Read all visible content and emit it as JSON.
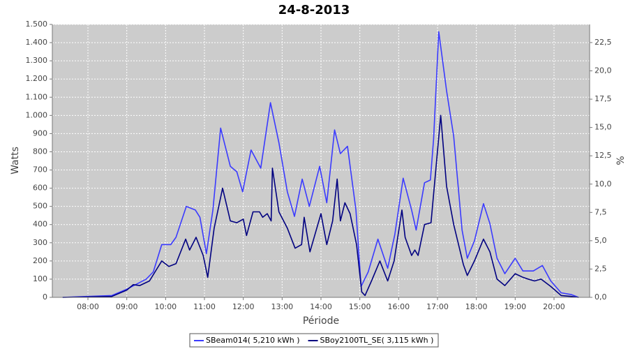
{
  "chart_data": {
    "type": "line",
    "title": "24-8-2013",
    "x_label": "Période",
    "y_label": "Watts",
    "y2_label": "%",
    "xlim": [
      "07:05",
      "20:55"
    ],
    "xticks": [
      "08:00",
      "09:00",
      "10:00",
      "11:00",
      "12:00",
      "13:00",
      "14:00",
      "15:00",
      "16:00",
      "17:00",
      "18:00",
      "19:00",
      "20:00"
    ],
    "ylim": [
      0,
      1500
    ],
    "yticks": [
      0,
      100,
      200,
      300,
      400,
      500,
      600,
      700,
      800,
      900,
      {
        "value": 1000,
        "label": "1.000"
      },
      {
        "value": 1100,
        "label": "1.100"
      },
      {
        "value": 1200,
        "label": "1.200"
      },
      {
        "value": 1300,
        "label": "1.300"
      },
      {
        "value": 1400,
        "label": "1.400"
      },
      {
        "value": 1500,
        "label": "1.500"
      }
    ],
    "y2lim": [
      0,
      24.1
    ],
    "y2ticks": [
      {
        "value": 0,
        "label": "0,0"
      },
      {
        "value": 2.5,
        "label": "2,5"
      },
      {
        "value": 5,
        "label": "5,0"
      },
      {
        "value": 7.5,
        "label": "7,5"
      },
      {
        "value": 10,
        "label": "10,0"
      },
      {
        "value": 12.5,
        "label": "12,5"
      },
      {
        "value": 15,
        "label": "15,0"
      },
      {
        "value": 17.5,
        "label": "17,5"
      },
      {
        "value": 20,
        "label": "20,0"
      },
      {
        "value": 22.5,
        "label": "22,5"
      }
    ],
    "grid": true,
    "legend": "bottom",
    "series": [
      {
        "name": "SBeam014( 5,210 kWh )",
        "color": "#3a3aff",
        "x": [
          "07:21",
          "08:37",
          "09:00",
          "09:30",
          "09:41",
          "09:54",
          "10:08",
          "10:16",
          "10:32",
          "10:46",
          "10:53",
          "11:03",
          "11:13",
          "11:25",
          "11:40",
          "11:50",
          "11:59",
          "12:12",
          "12:27",
          "12:42",
          "12:55",
          "13:08",
          "13:19",
          "13:31",
          "13:42",
          "13:58",
          "14:09",
          "14:21",
          "14:30",
          "14:41",
          "14:54",
          "15:02",
          "15:13",
          "15:28",
          "15:43",
          "15:54",
          "16:07",
          "16:20",
          "16:27",
          "16:40",
          "16:49",
          "16:54",
          "17:02",
          "17:14",
          "17:25",
          "17:38",
          "17:46",
          "17:57",
          "18:11",
          "18:21",
          "18:32",
          "18:44",
          "19:00",
          "19:12",
          "19:28",
          "19:42",
          "19:55",
          "20:11",
          "20:27",
          "20:38"
        ],
        "values": [
          0,
          10,
          45,
          100,
          140,
          290,
          290,
          330,
          500,
          480,
          440,
          240,
          480,
          930,
          720,
          690,
          580,
          810,
          710,
          1070,
          850,
          580,
          445,
          650,
          500,
          720,
          520,
          920,
          790,
          830,
          480,
          60,
          140,
          320,
          160,
          345,
          655,
          480,
          370,
          630,
          645,
          870,
          1460,
          1135,
          885,
          370,
          215,
          310,
          515,
          405,
          215,
          130,
          215,
          145,
          145,
          175,
          90,
          25,
          15,
          0
        ]
      },
      {
        "name": "SBoy2100TL_SE( 3,115 kWh )",
        "color": "#000080",
        "x": [
          "07:21",
          "08:37",
          "09:00",
          "09:10",
          "09:20",
          "09:35",
          "09:54",
          "10:05",
          "10:16",
          "10:31",
          "10:37",
          "10:47",
          "10:58",
          "11:05",
          "11:15",
          "11:28",
          "11:40",
          "11:50",
          "12:00",
          "12:05",
          "12:15",
          "12:25",
          "12:30",
          "12:37",
          "12:43",
          "12:45",
          "12:55",
          "13:08",
          "13:20",
          "13:30",
          "13:34",
          "13:43",
          "14:00",
          "14:09",
          "14:18",
          "14:25",
          "14:30",
          "14:37",
          "14:45",
          "14:55",
          "15:03",
          "15:08",
          "15:18",
          "15:31",
          "15:43",
          "15:53",
          "16:05",
          "16:10",
          "16:20",
          "16:25",
          "16:30",
          "16:40",
          "16:50",
          "17:05",
          "17:14",
          "17:25",
          "17:40",
          "17:46",
          "17:57",
          "18:11",
          "18:21",
          "18:32",
          "18:44",
          "19:00",
          "19:12",
          "19:20",
          "19:30",
          "19:40",
          "19:55",
          "20:11",
          "20:27",
          "20:38"
        ],
        "values": [
          0,
          5,
          40,
          70,
          65,
          90,
          200,
          170,
          185,
          320,
          260,
          330,
          230,
          110,
          380,
          600,
          420,
          410,
          430,
          340,
          470,
          470,
          440,
          460,
          420,
          710,
          470,
          380,
          270,
          290,
          440,
          250,
          460,
          290,
          420,
          650,
          420,
          520,
          460,
          290,
          30,
          10,
          90,
          200,
          90,
          200,
          480,
          330,
          230,
          260,
          230,
          400,
          410,
          1000,
          610,
          400,
          180,
          120,
          200,
          320,
          250,
          100,
          65,
          130,
          110,
          100,
          90,
          100,
          60,
          10,
          5,
          0
        ]
      }
    ]
  }
}
